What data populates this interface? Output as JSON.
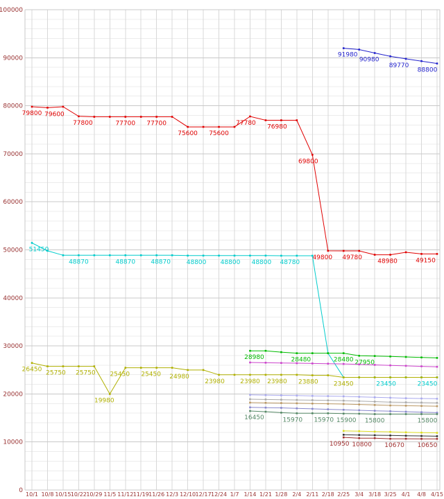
{
  "chart_data": {
    "type": "line",
    "title": "",
    "xlabel": "",
    "ylabel": "",
    "background": "#ffffff",
    "axis_label_color": "#993333",
    "grid": {
      "minor": "#ececec",
      "major": "#c8c8c8",
      "vertical": "#d8d8d8",
      "visible": true
    },
    "legend_position": "none",
    "y_axis": {
      "min": 0,
      "max": 100000,
      "major_step": 10000,
      "minor_step": 2000,
      "tick_labels": [
        "0",
        "10000",
        "20000",
        "30000",
        "40000",
        "50000",
        "60000",
        "70000",
        "80000",
        "90000",
        "100000"
      ]
    },
    "x_labels": [
      "10/1",
      "10/8",
      "10/15",
      "10/22",
      "10/29",
      "11/5",
      "11/12",
      "11/19",
      "11/26",
      "12/3",
      "12/10",
      "12/17",
      "12/24",
      "1/7",
      "1/14",
      "1/21",
      "1/28",
      "2/4",
      "2/11",
      "2/18",
      "2/25",
      "3/4",
      "3/18",
      "3/25",
      "4/1",
      "4/8",
      "4/15"
    ],
    "series": [
      {
        "name": "red",
        "color": "#e00000",
        "start": 0,
        "values": [
          79800,
          79600,
          79800,
          77800,
          77700,
          77700,
          77700,
          77700,
          77700,
          77700,
          75600,
          75600,
          75600,
          75600,
          77780,
          76980,
          76980,
          76980,
          69800,
          49800,
          49780,
          49780,
          48980,
          48980,
          49500,
          49150,
          49150
        ],
        "labels": [
          {
            "i": 0,
            "t": "79800"
          },
          {
            "i": 1,
            "t": "79600",
            "dx": 10
          },
          {
            "i": 3,
            "t": "77800",
            "dx": 6
          },
          {
            "i": 6,
            "t": "77700"
          },
          {
            "i": 8,
            "t": "77700"
          },
          {
            "i": 10,
            "t": "75600"
          },
          {
            "i": 12,
            "t": "75600"
          },
          {
            "i": 14,
            "t": "77780",
            "dx": -6
          },
          {
            "i": 16,
            "t": "76980",
            "dx": -6
          },
          {
            "i": 18,
            "t": "69800",
            "dx": -6
          },
          {
            "i": 19,
            "t": "49800",
            "dx": -8
          },
          {
            "i": 21,
            "t": "49780",
            "dx": -10
          },
          {
            "i": 23,
            "t": "48980",
            "dx": -4
          },
          {
            "i": 25,
            "t": "49150",
            "dx": 6
          }
        ]
      },
      {
        "name": "cyan",
        "color": "#00cccc",
        "start": 0,
        "values": [
          51450,
          49800,
          48870,
          48870,
          48870,
          48870,
          48870,
          48870,
          48870,
          48870,
          48800,
          48800,
          48800,
          48800,
          48800,
          48800,
          48780,
          48780,
          48780,
          28480,
          23450,
          23450,
          23450,
          23450,
          23450,
          23450,
          23450
        ],
        "labels": [
          {
            "i": 0,
            "t": "51450",
            "dx": 10
          },
          {
            "i": 3,
            "t": "48870"
          },
          {
            "i": 6,
            "t": "48870"
          },
          {
            "i": 8,
            "t": "48870",
            "dx": 6
          },
          {
            "i": 11,
            "t": "48800",
            "dx": -10
          },
          {
            "i": 13,
            "t": "48800",
            "dx": -6
          },
          {
            "i": 15,
            "t": "48800",
            "dx": -6
          },
          {
            "i": 17,
            "t": "48780",
            "dx": -10
          },
          {
            "i": 23,
            "t": "23450",
            "dx": -6
          },
          {
            "i": 26,
            "t": "23450",
            "dx": -14
          }
        ]
      },
      {
        "name": "olive",
        "color": "#b0b000",
        "start": 0,
        "values": [
          26450,
          25750,
          25750,
          25750,
          25750,
          19980,
          25450,
          25450,
          25450,
          25450,
          24980,
          24980,
          23980,
          23980,
          23980,
          23980,
          23980,
          23980,
          23880,
          23880,
          23450,
          23450,
          23450,
          23450,
          23450,
          23450,
          23450
        ],
        "labels": [
          {
            "i": 0,
            "t": "26450"
          },
          {
            "i": 1,
            "t": "25750",
            "dx": 12
          },
          {
            "i": 3,
            "t": "25750",
            "dx": 10
          },
          {
            "i": 5,
            "t": "19980",
            "dx": -8
          },
          {
            "i": 6,
            "t": "25450",
            "dx": -8
          },
          {
            "i": 8,
            "t": "25450",
            "dx": -8
          },
          {
            "i": 10,
            "t": "24980",
            "dx": -12
          },
          {
            "i": 12,
            "t": "23980",
            "dx": -6
          },
          {
            "i": 14,
            "t": "23980"
          },
          {
            "i": 16,
            "t": "23980",
            "dx": -6
          },
          {
            "i": 18,
            "t": "23880",
            "dx": -6
          },
          {
            "i": 20,
            "t": "23450"
          }
        ]
      },
      {
        "name": "blue",
        "color": "#2222cc",
        "start": 20,
        "values": [
          91980,
          91700,
          90980,
          90300,
          89770,
          89300,
          88800
        ],
        "labels": [
          {
            "i": 20,
            "t": "91980",
            "dx": 6
          },
          {
            "i": 22,
            "t": "90980",
            "dx": -8
          },
          {
            "i": 24,
            "t": "89770",
            "dx": -10
          },
          {
            "i": 26,
            "t": "88800",
            "dx": -14
          }
        ]
      },
      {
        "name": "green",
        "color": "#00bb00",
        "start": 14,
        "values": [
          28980,
          28980,
          28700,
          28480,
          28480,
          28480,
          28480,
          27950,
          27900,
          27800,
          27700,
          27600,
          27500
        ],
        "labels": [
          {
            "i": 14,
            "t": "28980",
            "dx": 6
          },
          {
            "i": 17,
            "t": "28480",
            "dx": 6
          },
          {
            "i": 20,
            "t": "28480"
          },
          {
            "i": 21,
            "t": "27950",
            "dx": 8
          }
        ]
      },
      {
        "name": "magenta",
        "color": "#cc44cc",
        "start": 14,
        "values": [
          26550,
          26500,
          26450,
          26400,
          26350,
          26300,
          26250,
          26150,
          26050,
          25950,
          25850,
          25750,
          25650
        ],
        "labels": []
      },
      {
        "name": "lavender",
        "color": "#aaaaee",
        "start": 14,
        "values": [
          19800,
          19750,
          19700,
          19650,
          19600,
          19550,
          19500,
          19400,
          19300,
          19200,
          19100,
          19050,
          19000
        ],
        "labels": []
      },
      {
        "name": "gray",
        "color": "#aaaaaa",
        "start": 14,
        "values": [
          18900,
          18850,
          18800,
          18750,
          18700,
          18650,
          18600,
          18500,
          18400,
          18300,
          18250,
          18200,
          18150
        ],
        "labels": []
      },
      {
        "name": "tan",
        "color": "#bb9966",
        "start": 14,
        "values": [
          18200,
          18150,
          18100,
          18050,
          18000,
          17950,
          17900,
          17800,
          17700,
          17600,
          17550,
          17500,
          17450
        ],
        "labels": []
      },
      {
        "name": "periwinkle",
        "color": "#8888cc",
        "start": 14,
        "values": [
          17200,
          17150,
          17100,
          17000,
          16900,
          16800,
          16700,
          16600,
          16500,
          16400,
          16300,
          16200,
          16100
        ],
        "labels": []
      },
      {
        "name": "darkgreen",
        "color": "#558866",
        "start": 14,
        "values": [
          16450,
          16300,
          16100,
          15970,
          15970,
          15970,
          15900,
          15880,
          15800,
          15800,
          15800,
          15800,
          15800
        ],
        "labels": [
          {
            "i": 14,
            "t": "16450",
            "dx": 6
          },
          {
            "i": 17,
            "t": "15970",
            "dx": -6
          },
          {
            "i": 19,
            "t": "15970",
            "dx": -6
          },
          {
            "i": 20,
            "t": "15900",
            "dx": 4
          },
          {
            "i": 22,
            "t": "15800"
          },
          {
            "i": 26,
            "t": "15800",
            "dx": -14
          }
        ]
      },
      {
        "name": "yellow",
        "color": "#dddd22",
        "start": 20,
        "values": [
          12300,
          12250,
          12150,
          12100,
          12000,
          11950,
          11900
        ],
        "labels": []
      },
      {
        "name": "black",
        "color": "#333333",
        "start": 20,
        "values": [
          11500,
          11450,
          11400,
          11350,
          11300,
          11250,
          11200
        ],
        "labels": []
      },
      {
        "name": "maroon",
        "color": "#a03030",
        "start": 20,
        "values": [
          10950,
          10800,
          10800,
          10670,
          10670,
          10650,
          10650
        ],
        "labels": [
          {
            "i": 20,
            "t": "10950",
            "dx": -6
          },
          {
            "i": 21,
            "t": "10800",
            "dx": 4
          },
          {
            "i": 23,
            "t": "10670",
            "dx": 6
          },
          {
            "i": 26,
            "t": "10650",
            "dx": -14
          }
        ]
      }
    ]
  }
}
